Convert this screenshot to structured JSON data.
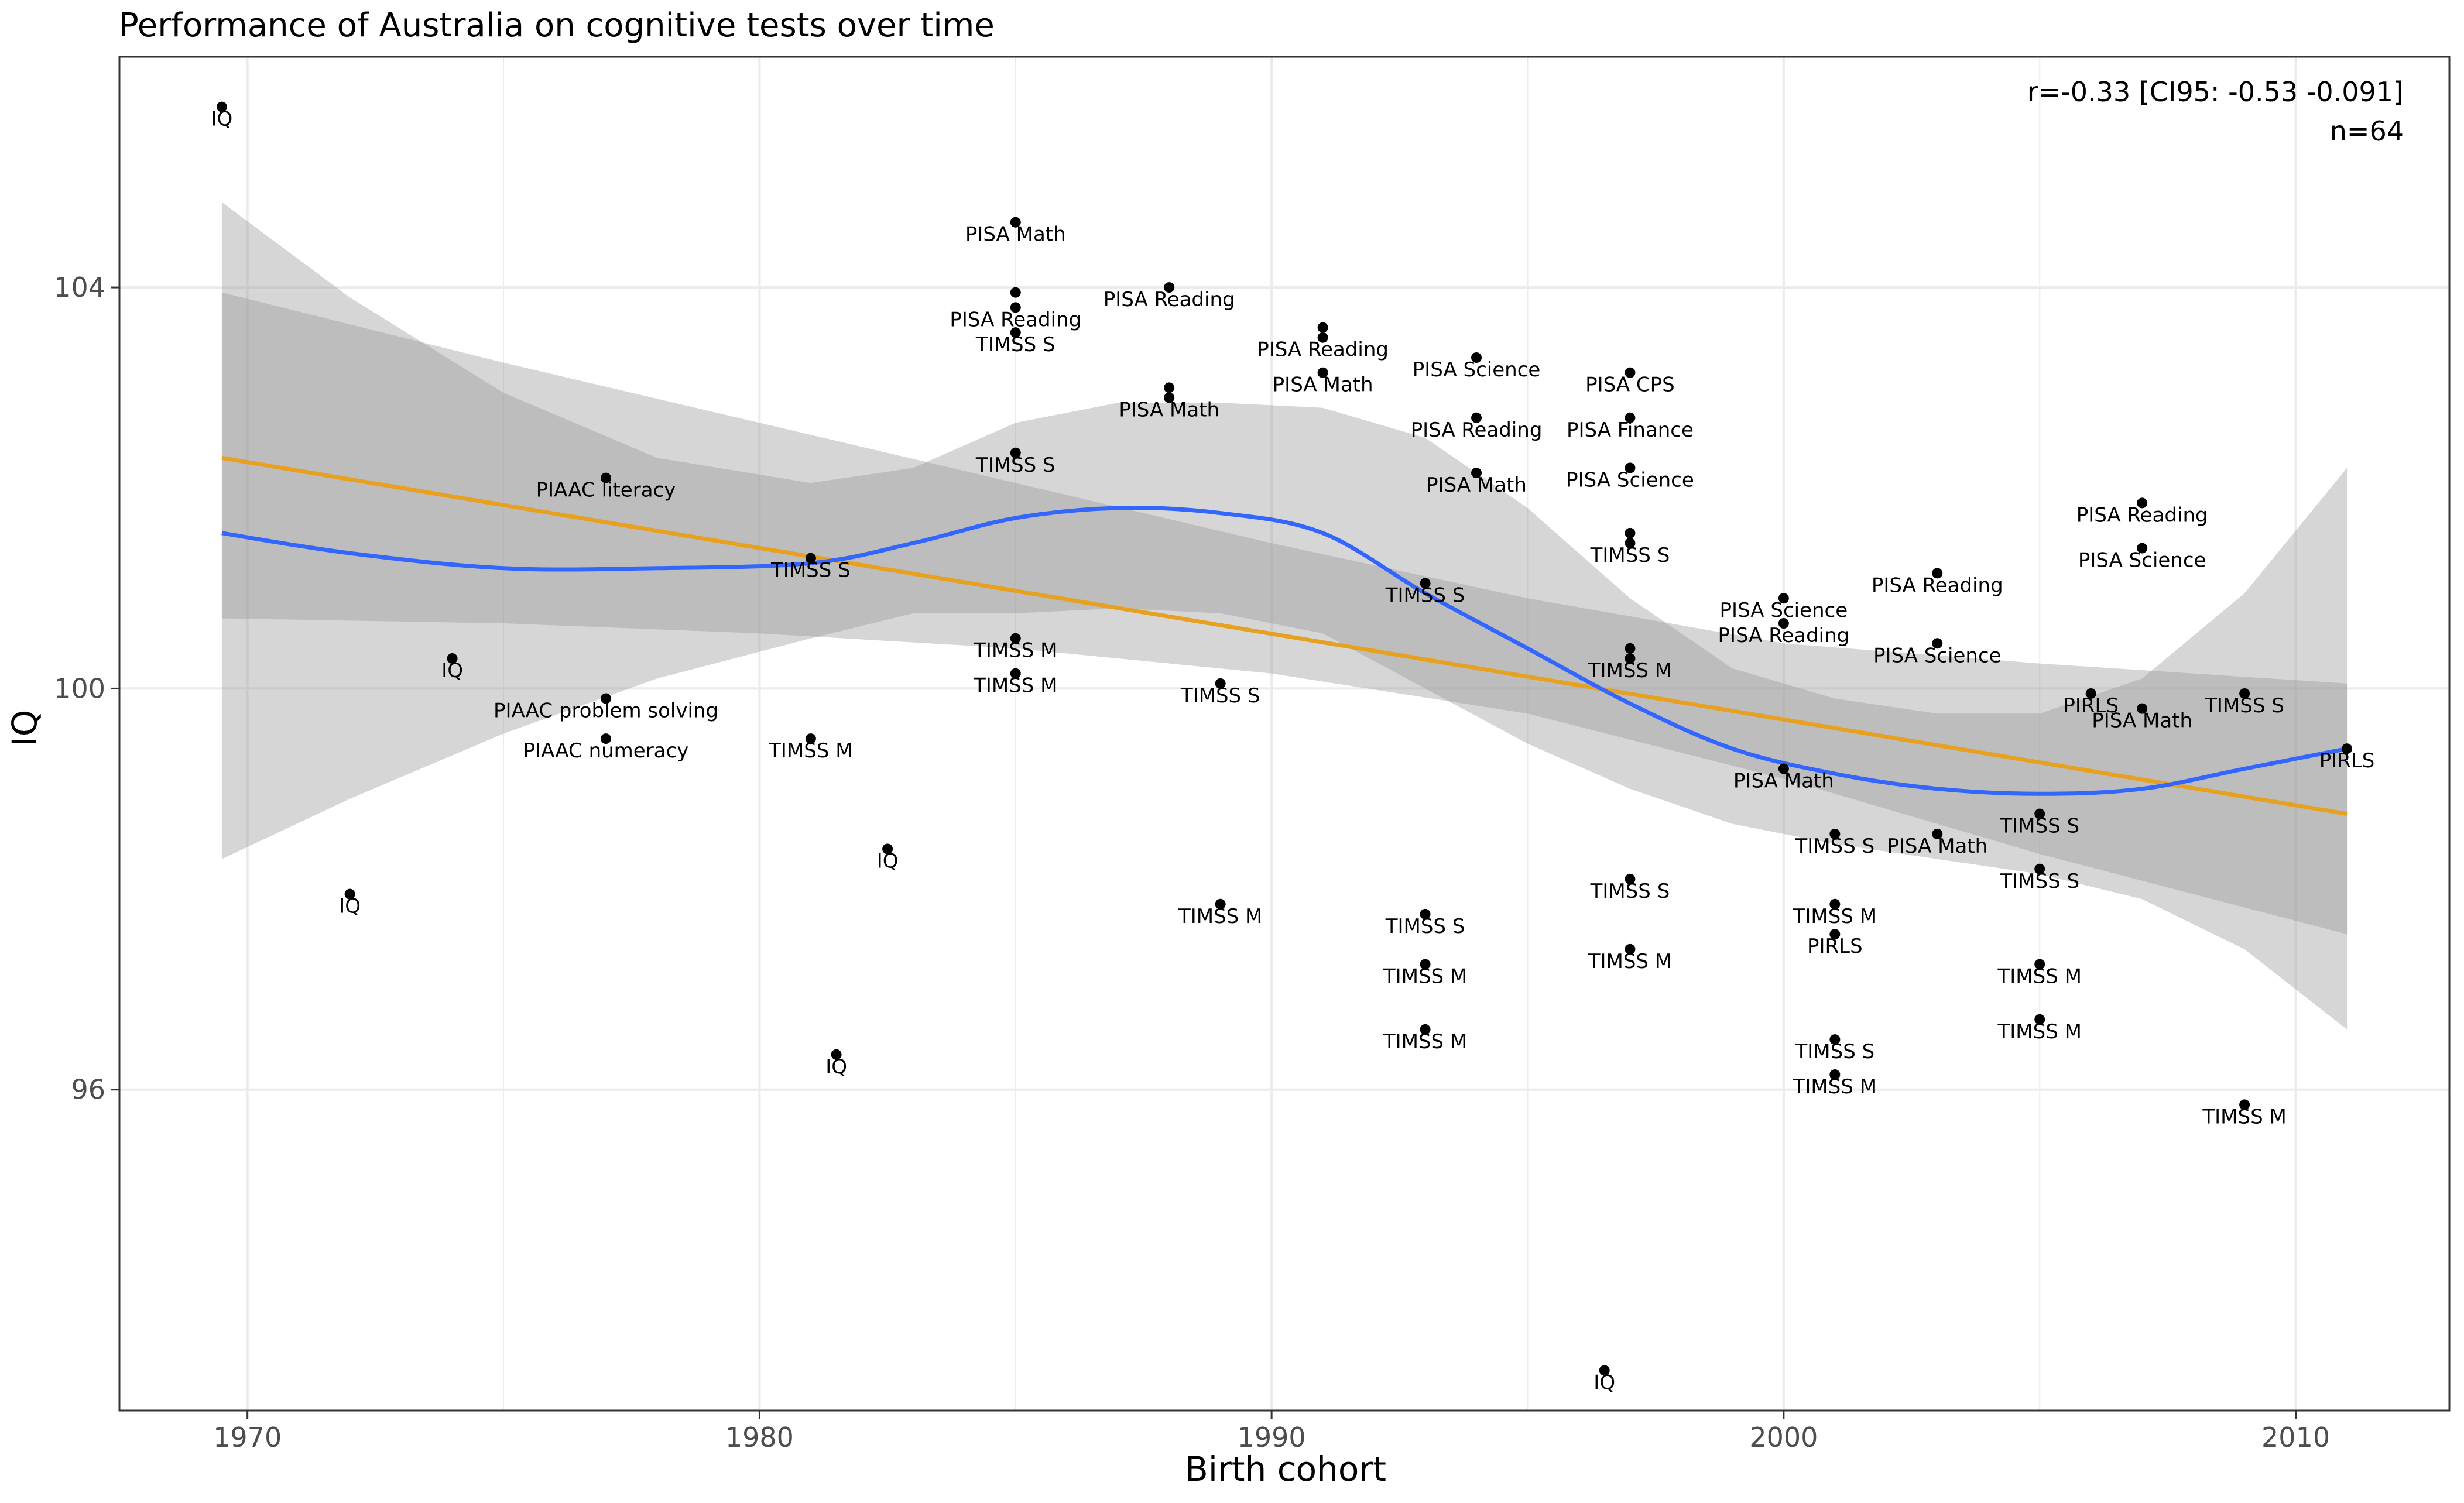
{
  "chart_data": {
    "type": "scatter",
    "title": "Performance of Australia on cognitive tests over time",
    "xlabel": "Birth cohort",
    "ylabel": "IQ",
    "xlim": [
      1967.5,
      2013.0
    ],
    "ylim": [
      92.8,
      106.3
    ],
    "x_ticks": [
      1970,
      1980,
      1990,
      2000,
      2010
    ],
    "y_ticks": [
      96,
      100,
      104
    ],
    "grid": true,
    "legend": "none",
    "annotations": [
      "r=-0.33 [CI95: -0.53 -0.091]",
      "n=64"
    ],
    "colors": {
      "points": "#000000",
      "linear_fit": "#e8a020",
      "loess_fit": "#3366ff",
      "ribbon": "#999999",
      "panel_border": "#333333",
      "grid": "#ebebeb"
    },
    "points": [
      {
        "x": 1969.5,
        "y": 105.8,
        "label": "IQ"
      },
      {
        "x": 1972.0,
        "y": 97.95,
        "label": "IQ"
      },
      {
        "x": 1974.0,
        "y": 100.3,
        "label": "IQ"
      },
      {
        "x": 1977.0,
        "y": 102.1,
        "label": "PIAAC literacy"
      },
      {
        "x": 1977.0,
        "y": 99.9,
        "label": "PIAAC problem solving"
      },
      {
        "x": 1977.0,
        "y": 99.5,
        "label": "PIAAC numeracy"
      },
      {
        "x": 1981.0,
        "y": 101.3,
        "label": "TIMSS S"
      },
      {
        "x": 1981.0,
        "y": 99.5,
        "label": "TIMSS M"
      },
      {
        "x": 1981.5,
        "y": 96.35,
        "label": "IQ"
      },
      {
        "x": 1982.5,
        "y": 98.4,
        "label": "IQ"
      },
      {
        "x": 1985.0,
        "y": 104.65,
        "label": "PISA Math"
      },
      {
        "x": 1985.0,
        "y": 103.95,
        "label": ""
      },
      {
        "x": 1985.0,
        "y": 103.8,
        "label": "PISA Reading"
      },
      {
        "x": 1985.0,
        "y": 103.55,
        "label": "TIMSS S"
      },
      {
        "x": 1985.0,
        "y": 102.35,
        "label": "TIMSS S"
      },
      {
        "x": 1985.0,
        "y": 100.5,
        "label": "TIMSS M"
      },
      {
        "x": 1985.0,
        "y": 100.15,
        "label": "TIMSS M"
      },
      {
        "x": 1988.0,
        "y": 104.0,
        "label": "PISA Reading"
      },
      {
        "x": 1988.0,
        "y": 103.0,
        "label": ""
      },
      {
        "x": 1988.0,
        "y": 102.9,
        "label": "PISA Math"
      },
      {
        "x": 1989.0,
        "y": 100.05,
        "label": "TIMSS S"
      },
      {
        "x": 1989.0,
        "y": 97.85,
        "label": "TIMSS M"
      },
      {
        "x": 1991.0,
        "y": 103.6,
        "label": ""
      },
      {
        "x": 1991.0,
        "y": 103.5,
        "label": "PISA Reading"
      },
      {
        "x": 1991.0,
        "y": 103.15,
        "label": "PISA Math"
      },
      {
        "x": 1993.0,
        "y": 101.05,
        "label": "TIMSS S"
      },
      {
        "x": 1993.0,
        "y": 97.75,
        "label": "TIMSS S"
      },
      {
        "x": 1993.0,
        "y": 97.25,
        "label": "TIMSS M"
      },
      {
        "x": 1993.0,
        "y": 96.6,
        "label": "TIMSS M"
      },
      {
        "x": 1994.0,
        "y": 103.3,
        "label": "PISA Science"
      },
      {
        "x": 1994.0,
        "y": 102.7,
        "label": "PISA Reading"
      },
      {
        "x": 1994.0,
        "y": 102.15,
        "label": "PISA Math"
      },
      {
        "x": 1996.5,
        "y": 93.2,
        "label": "IQ"
      },
      {
        "x": 1997.0,
        "y": 103.15,
        "label": "PISA CPS"
      },
      {
        "x": 1997.0,
        "y": 102.7,
        "label": "PISA Finance"
      },
      {
        "x": 1997.0,
        "y": 102.2,
        "label": "PISA Science"
      },
      {
        "x": 1997.0,
        "y": 101.55,
        "label": ""
      },
      {
        "x": 1997.0,
        "y": 101.45,
        "label": "TIMSS S"
      },
      {
        "x": 1997.0,
        "y": 100.4,
        "label": ""
      },
      {
        "x": 1997.0,
        "y": 100.3,
        "label": "TIMSS M"
      },
      {
        "x": 1997.0,
        "y": 98.1,
        "label": "TIMSS S"
      },
      {
        "x": 1997.0,
        "y": 97.4,
        "label": "TIMSS M"
      },
      {
        "x": 2000.0,
        "y": 100.9,
        "label": "PISA Science"
      },
      {
        "x": 2000.0,
        "y": 100.65,
        "label": "PISA Reading"
      },
      {
        "x": 2000.0,
        "y": 99.2,
        "label": "PISA Math"
      },
      {
        "x": 2001.0,
        "y": 98.55,
        "label": "TIMSS S"
      },
      {
        "x": 2001.0,
        "y": 97.85,
        "label": "TIMSS M"
      },
      {
        "x": 2001.0,
        "y": 97.55,
        "label": "PIRLS"
      },
      {
        "x": 2001.0,
        "y": 96.5,
        "label": "TIMSS S"
      },
      {
        "x": 2001.0,
        "y": 96.15,
        "label": "TIMSS M"
      },
      {
        "x": 2003.0,
        "y": 101.15,
        "label": "PISA Reading"
      },
      {
        "x": 2003.0,
        "y": 100.45,
        "label": "PISA Science"
      },
      {
        "x": 2003.0,
        "y": 98.55,
        "label": "PISA Math"
      },
      {
        "x": 2005.0,
        "y": 98.75,
        "label": "TIMSS S"
      },
      {
        "x": 2005.0,
        "y": 98.2,
        "label": "TIMSS S"
      },
      {
        "x": 2005.0,
        "y": 97.25,
        "label": "TIMSS M"
      },
      {
        "x": 2005.0,
        "y": 96.7,
        "label": "TIMSS M"
      },
      {
        "x": 2006.0,
        "y": 99.95,
        "label": "PIRLS"
      },
      {
        "x": 2007.0,
        "y": 101.85,
        "label": "PISA Reading"
      },
      {
        "x": 2007.0,
        "y": 101.4,
        "label": "PISA Science"
      },
      {
        "x": 2007.0,
        "y": 99.8,
        "label": "PISA Math"
      },
      {
        "x": 2009.0,
        "y": 99.95,
        "label": "TIMSS S"
      },
      {
        "x": 2009.0,
        "y": 95.85,
        "label": "TIMSS M"
      },
      {
        "x": 2011.0,
        "y": 99.4,
        "label": "PIRLS"
      }
    ],
    "linear_fit": {
      "x": [
        1969.5,
        2011.0
      ],
      "y": [
        102.3,
        98.75
      ]
    },
    "linear_ci": {
      "x": [
        1969.5,
        1975,
        1980,
        1985,
        1990,
        1995,
        2000,
        2005,
        2011.0
      ],
      "lower": [
        100.7,
        100.65,
        100.55,
        100.4,
        100.15,
        99.75,
        99.1,
        98.35,
        97.55
      ],
      "upper": [
        103.95,
        103.25,
        102.65,
        102.05,
        101.45,
        100.9,
        100.45,
        100.25,
        100.05
      ]
    },
    "loess_fit": {
      "x": [
        1969.5,
        1972,
        1975,
        1978,
        1981,
        1983,
        1985,
        1987,
        1989,
        1991,
        1993,
        1995,
        1997,
        1999,
        2001,
        2003,
        2005,
        2007,
        2009,
        2011.0
      ],
      "y": [
        101.55,
        101.35,
        101.2,
        101.2,
        101.25,
        101.45,
        101.7,
        101.8,
        101.75,
        101.55,
        100.95,
        100.4,
        99.85,
        99.4,
        99.15,
        99.0,
        98.95,
        99.0,
        99.2,
        99.4
      ]
    },
    "loess_ci": {
      "x": [
        1969.5,
        1972,
        1975,
        1978,
        1981,
        1983,
        1985,
        1987,
        1989,
        1991,
        1993,
        1995,
        1997,
        1999,
        2001,
        2003,
        2005,
        2007,
        2009,
        2011.0
      ],
      "lower": [
        98.3,
        98.9,
        99.55,
        100.1,
        100.5,
        100.75,
        100.75,
        100.8,
        100.75,
        100.55,
        100.0,
        99.45,
        99.0,
        98.65,
        98.45,
        98.3,
        98.15,
        97.9,
        97.4,
        96.6
      ],
      "upper": [
        104.85,
        103.9,
        102.95,
        102.3,
        102.05,
        102.2,
        102.65,
        102.85,
        102.85,
        102.8,
        102.5,
        101.8,
        100.9,
        100.2,
        99.9,
        99.75,
        99.75,
        100.1,
        100.95,
        102.2
      ]
    }
  }
}
